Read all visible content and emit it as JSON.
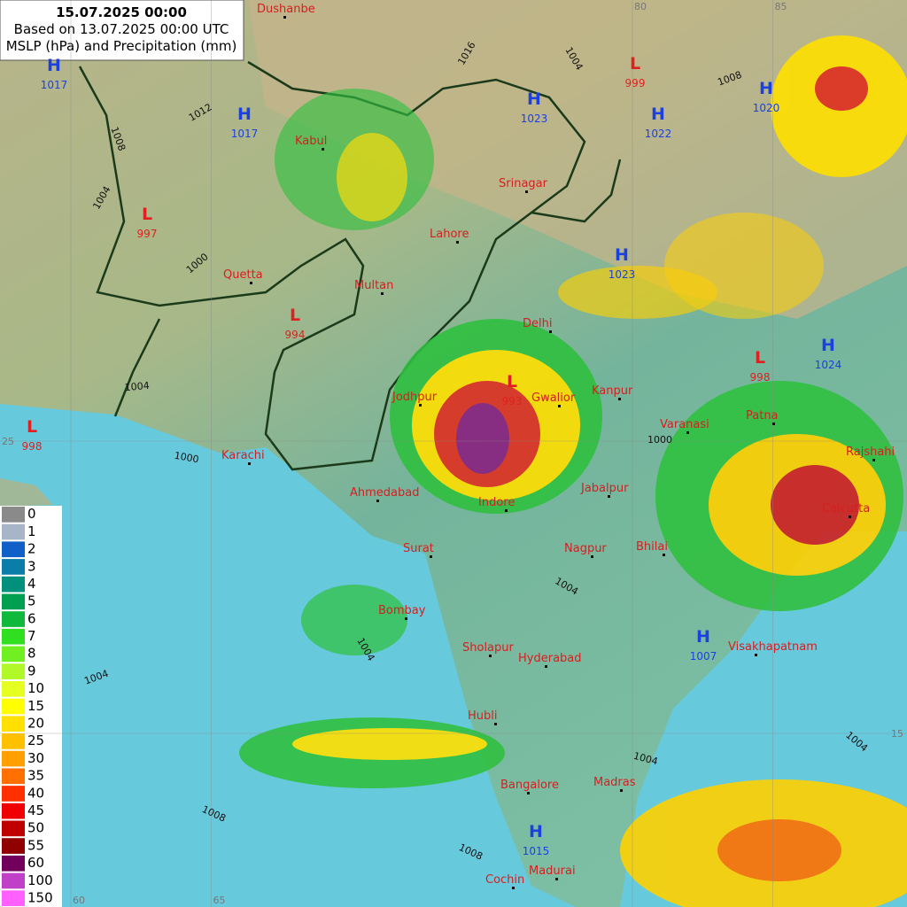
{
  "header": {
    "title": "15.07.2025 00:00",
    "subtitle": "Based on 13.07.2025 00:00 UTC",
    "caption": "MSLP (hPa) and Precipitation (mm)"
  },
  "cities": [
    "Dushanbe",
    "Kabul",
    "Srinagar",
    "Lahore",
    "Quetta",
    "Multan",
    "Delhi",
    "Jodhpur",
    "Gwalior",
    "Kanpur",
    "Varanasi",
    "Patna",
    "Rajshahi",
    "Karachi",
    "Ahmedabad",
    "Indore",
    "Jabalpur",
    "Calcutta",
    "Surat",
    "Nagpur",
    "Bhilai",
    "Bombay",
    "Visakhapatnam",
    "Sholapur",
    "Hyderabad",
    "Hubli",
    "Madras",
    "Bangalore",
    "Cochin",
    "Madurai"
  ],
  "pressure_centers": [
    {
      "letter": "H",
      "value": 1017
    },
    {
      "letter": "L",
      "value": 997
    },
    {
      "letter": "L",
      "value": 994
    },
    {
      "letter": "L",
      "value": 998
    },
    {
      "letter": "H",
      "value": 1017
    },
    {
      "letter": "H",
      "value": 1023
    },
    {
      "letter": "L",
      "value": 999
    },
    {
      "letter": "H",
      "value": 1022
    },
    {
      "letter": "H",
      "value": 1020
    },
    {
      "letter": "H",
      "value": 1023
    },
    {
      "letter": "H",
      "value": 1024
    },
    {
      "letter": "L",
      "value": 998
    },
    {
      "letter": "L",
      "value": 993
    },
    {
      "letter": "H",
      "value": 1007
    },
    {
      "letter": "H",
      "value": 1015
    }
  ],
  "isobar_labels": [
    1004,
    1004,
    1008,
    1008,
    1004,
    1004,
    1000,
    1004,
    1000,
    1004,
    1000,
    1008,
    1004,
    1012,
    1016,
    1004,
    1008
  ],
  "longitudes": [
    60,
    65,
    80,
    85
  ],
  "latitudes": [
    25,
    15
  ],
  "legend": {
    "levels": [
      0,
      1,
      2,
      3,
      4,
      5,
      6,
      7,
      8,
      9,
      10,
      15,
      20,
      25,
      30,
      35,
      40,
      45,
      50,
      55,
      60,
      100,
      150
    ],
    "colors": [
      "#8a8a8a",
      "#a8b4c8",
      "#1060c8",
      "#0a7ea8",
      "#00907c",
      "#00a050",
      "#10b83c",
      "#30e020",
      "#70f020",
      "#b0f828",
      "#e4ff20",
      "#ffff00",
      "#ffe000",
      "#ffc000",
      "#ffa000",
      "#ff7000",
      "#ff3000",
      "#f00000",
      "#c00000",
      "#900000",
      "#70005c",
      "#c040c8",
      "#ff60ff"
    ]
  }
}
